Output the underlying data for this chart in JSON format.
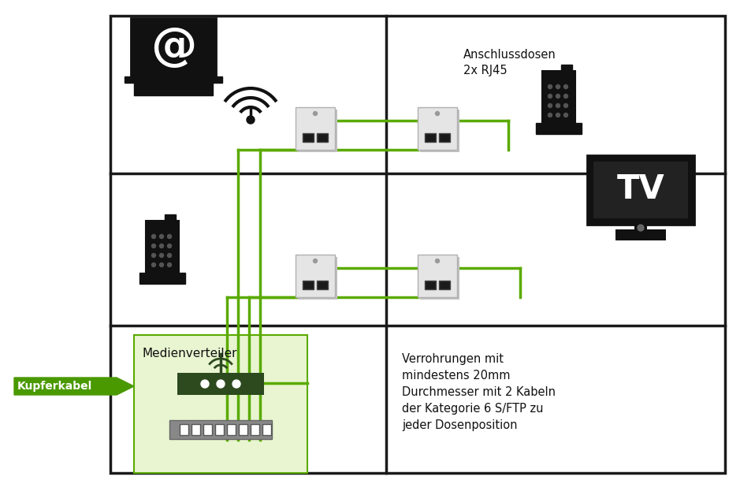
{
  "bg_color": "#ffffff",
  "grid_line_color": "#1a1a1a",
  "green_line_color": "#5aaa00",
  "green_fill_color": "#e8f5d0",
  "arrow_green": "#4a9900",
  "router_fill": "#2d4a1e",
  "switch_fill": "#888888",
  "text_color": "#1a1a1a",
  "label_anschlussdosen": "Anschlussdosen\n2x RJ45",
  "label_medienverteiler": "Medienverteiler",
  "label_kupferkabel": "Kupferkabel",
  "label_verrohrung": "Verrohrungen mit\nmindestens 20mm\nDurchmesser mit 2 Kabeln\nder Kategorie 6 S/FTP zu\njeder Dosenposition"
}
